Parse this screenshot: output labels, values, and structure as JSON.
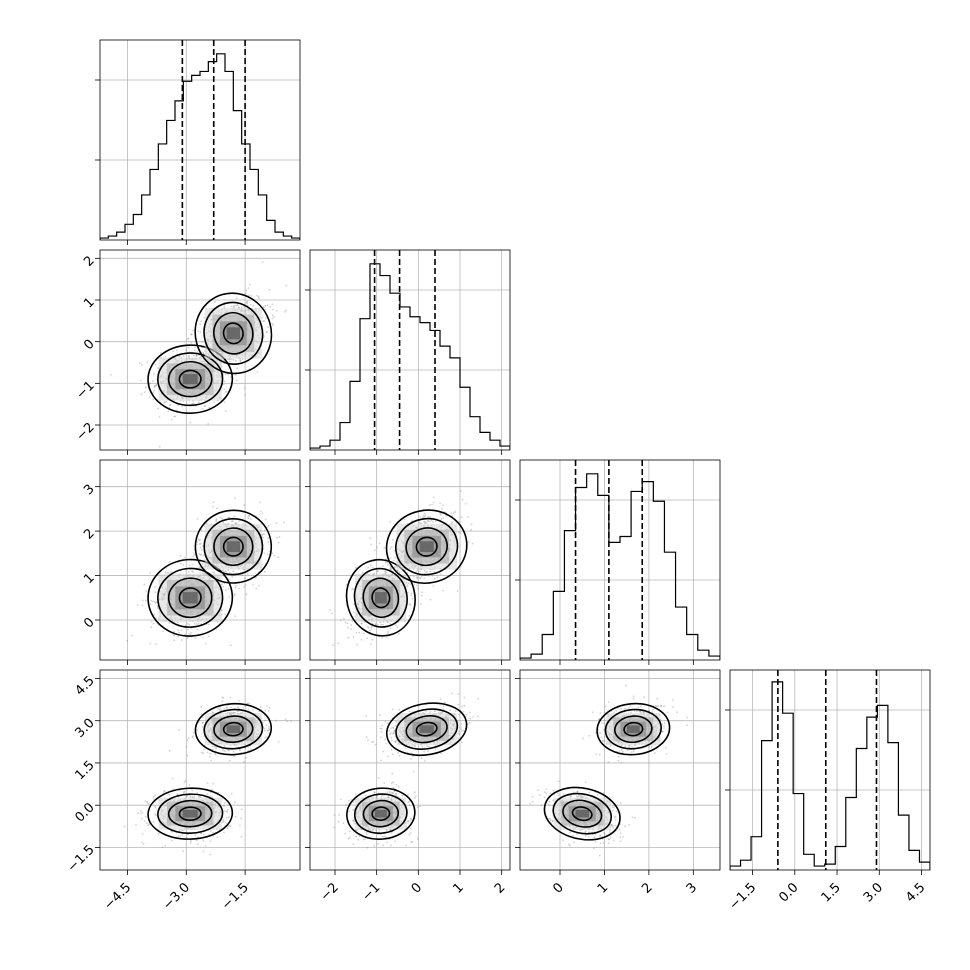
{
  "chart_data": {
    "type": "corner",
    "title": "",
    "grid": true,
    "colors": {
      "line": "#000000",
      "grid": "#b0b0b0",
      "points": "#7f7f7f"
    },
    "parameters": [
      {
        "range": [
          -5.2,
          -0.1
        ],
        "ticks": [
          -4.5,
          -3.0,
          -1.5
        ],
        "tick_labels": [
          "−4.5",
          "−3.0",
          "−1.5"
        ],
        "quantiles": [
          -3.1,
          -2.3,
          -1.5
        ],
        "hist_counts": [
          0.01,
          0.02,
          0.04,
          0.08,
          0.13,
          0.23,
          0.36,
          0.49,
          0.61,
          0.71,
          0.81,
          0.84,
          0.86,
          0.91,
          0.95,
          0.86,
          0.66,
          0.49,
          0.36,
          0.23,
          0.1,
          0.04,
          0.02,
          0.01
        ]
      },
      {
        "range": [
          -2.6,
          2.2
        ],
        "ticks": [
          -2,
          -1,
          0,
          1,
          2
        ],
        "tick_labels": [
          "−2",
          "−1",
          "0",
          "1",
          "2"
        ],
        "quantiles": [
          -1.05,
          -0.45,
          0.4
        ],
        "hist_counts": [
          0.01,
          0.02,
          0.05,
          0.14,
          0.35,
          0.67,
          0.95,
          0.89,
          0.8,
          0.73,
          0.68,
          0.65,
          0.61,
          0.53,
          0.47,
          0.32,
          0.17,
          0.09,
          0.05,
          0.02
        ]
      },
      {
        "range": [
          -0.9,
          3.6
        ],
        "ticks": [
          0,
          1,
          2,
          3
        ],
        "tick_labels": [
          "0",
          "1",
          "2",
          "3"
        ],
        "quantiles": [
          0.35,
          1.1,
          1.85
        ],
        "hist_counts": [
          0.01,
          0.03,
          0.13,
          0.35,
          0.66,
          0.88,
          0.95,
          0.84,
          0.6,
          0.63,
          0.86,
          0.91,
          0.81,
          0.55,
          0.27,
          0.13,
          0.05,
          0.02
        ]
      },
      {
        "range": [
          -2.3,
          4.8
        ],
        "ticks": [
          -1.5,
          0.0,
          1.5,
          3.0,
          4.5
        ],
        "tick_labels": [
          "−1.5",
          "0.0",
          "1.5",
          "3.0",
          "4.5"
        ],
        "quantiles": [
          -0.6,
          1.1,
          2.9
        ],
        "hist_counts": [
          0.02,
          0.05,
          0.17,
          0.66,
          0.96,
          0.8,
          0.39,
          0.08,
          0.02,
          0.03,
          0.12,
          0.37,
          0.62,
          0.78,
          0.84,
          0.65,
          0.28,
          0.1,
          0.04
        ]
      }
    ],
    "modes": [
      {
        "center": [
          -2.9,
          -0.9,
          0.5,
          -0.3
        ],
        "spread": [
          0.5,
          0.38,
          0.4,
          0.42
        ]
      },
      {
        "center": [
          -1.8,
          0.2,
          1.65,
          2.7
        ],
        "spread": [
          0.45,
          0.45,
          0.38,
          0.42
        ]
      }
    ]
  }
}
